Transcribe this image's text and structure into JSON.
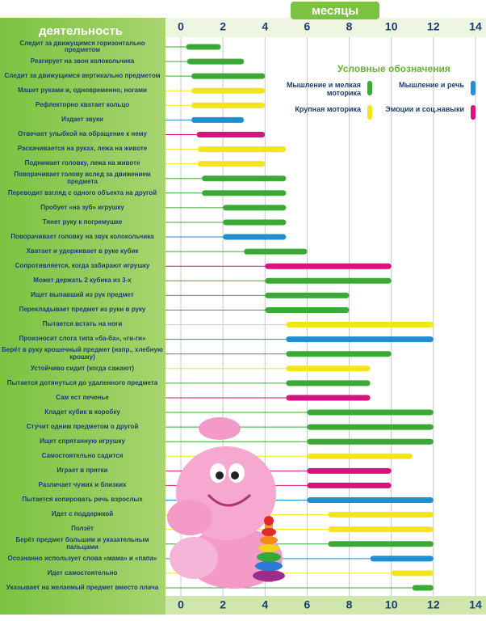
{
  "chart_data": {
    "type": "range-bar",
    "title": "месяцы",
    "y_label": "деятельность",
    "legend_title": "Условные обозначения",
    "xlim": [
      -0.5,
      14.5
    ],
    "xticks": [
      0,
      2,
      4,
      6,
      8,
      10,
      12,
      14
    ],
    "grid": true,
    "categories": [
      "Следит за движущимся горизонтально предметом",
      "Реагирует на звон колокольчика",
      "Следит за движущимся вертикально предметом",
      "Машет руками и, одновременно, ногами",
      "Рефлекторно хватает кольцо",
      "Издает звуки",
      "Отвечает улыбкой на обращение к нему",
      "Раскачивается на руках, лежа на животе",
      "Поднимает головку, лежа на животе",
      "Поворачивает голову вслед за движением предмета",
      "Переводит взгляд с одного объекта на другой",
      "Пробует «на зуб» игрушку",
      "Тянет руку к погремушке",
      "Поворачивает головку на звук колокольчика",
      "Хватает и удерживает в руке кубик",
      "Сопротивляется, когда забирают игрушку",
      "Может держать 2 кубика из 3-х",
      "Ищет выпавший из рук предмет",
      "Перекладывает предмет из руки в руку",
      "Пытается встать на ноги",
      "Произносит слога типа «ба-ба», «ги-ги»",
      "Берёт в руку крошечный предмет (напр., хлебную крошку)",
      "Устойчиво сидит (когда сажают)",
      "Пытается дотянуться до удаленного предмета",
      "Сам ест печенье",
      "Кладет кубик в коробку",
      "Стучит одним предметом о другой",
      "Ищет спрятанную игрушку",
      "Самостоятельно садится",
      "Играет в прятки",
      "Различает чужих и близких",
      "Пытается копировать речь взрослых",
      "Идет с поддержкой",
      "Ползёт",
      "Берёт предмет большим и указательным пальцами",
      "Осознанно использует слова «мама» и «папа»",
      "Идет самостоятельно",
      "Указывает на желаемый предмет вместо плача"
    ],
    "series": [
      {
        "name": "Мышление и мелкая моторика",
        "color": "#3aa935",
        "values": [
          [
            0.25,
            1.9
          ],
          [
            0.3,
            3
          ],
          [
            0.5,
            4
          ],
          null,
          null,
          null,
          null,
          null,
          null,
          [
            1,
            5
          ],
          [
            1,
            5
          ],
          [
            2,
            5
          ],
          [
            2,
            5
          ],
          null,
          [
            3,
            6
          ],
          null,
          [
            4,
            10
          ],
          [
            4,
            8
          ],
          [
            4,
            8
          ],
          null,
          null,
          [
            5,
            10
          ],
          null,
          [
            5,
            9
          ],
          null,
          [
            6,
            12
          ],
          [
            6,
            12
          ],
          [
            6,
            12
          ],
          null,
          null,
          null,
          null,
          null,
          null,
          [
            7,
            12
          ],
          null,
          null,
          [
            11,
            12
          ]
        ]
      },
      {
        "name": "Мышление и речь",
        "color": "#1e8fd2",
        "values": [
          null,
          null,
          null,
          null,
          null,
          [
            0.5,
            3
          ],
          null,
          null,
          null,
          null,
          null,
          null,
          null,
          [
            2,
            5
          ],
          null,
          null,
          null,
          null,
          null,
          null,
          [
            5,
            12
          ],
          null,
          null,
          null,
          null,
          null,
          null,
          null,
          null,
          null,
          null,
          [
            6,
            12
          ],
          null,
          null,
          null,
          [
            9,
            12
          ],
          null,
          null
        ]
      },
      {
        "name": "Крупная моторика",
        "color": "#f2e61a",
        "values": [
          null,
          null,
          null,
          [
            0.5,
            4
          ],
          [
            0.5,
            4
          ],
          null,
          null,
          [
            0.8,
            5
          ],
          [
            0.8,
            4
          ],
          null,
          null,
          null,
          null,
          null,
          null,
          null,
          null,
          null,
          null,
          [
            5,
            12
          ],
          null,
          null,
          [
            5,
            9
          ],
          null,
          null,
          null,
          null,
          null,
          [
            6,
            11
          ],
          null,
          null,
          null,
          [
            7,
            12
          ],
          [
            7,
            12
          ],
          null,
          null,
          [
            10,
            12
          ],
          null
        ]
      },
      {
        "name": "Эмоции и соц.навыки",
        "color": "#d6137e",
        "values": [
          null,
          null,
          null,
          null,
          null,
          null,
          [
            0.75,
            4
          ],
          null,
          null,
          null,
          null,
          null,
          null,
          null,
          null,
          [
            4,
            10
          ],
          null,
          null,
          null,
          null,
          null,
          null,
          null,
          null,
          [
            5,
            9
          ],
          null,
          null,
          null,
          null,
          [
            6,
            10
          ],
          [
            6,
            10
          ],
          null,
          null,
          null,
          null,
          null,
          null,
          null
        ]
      }
    ]
  }
}
